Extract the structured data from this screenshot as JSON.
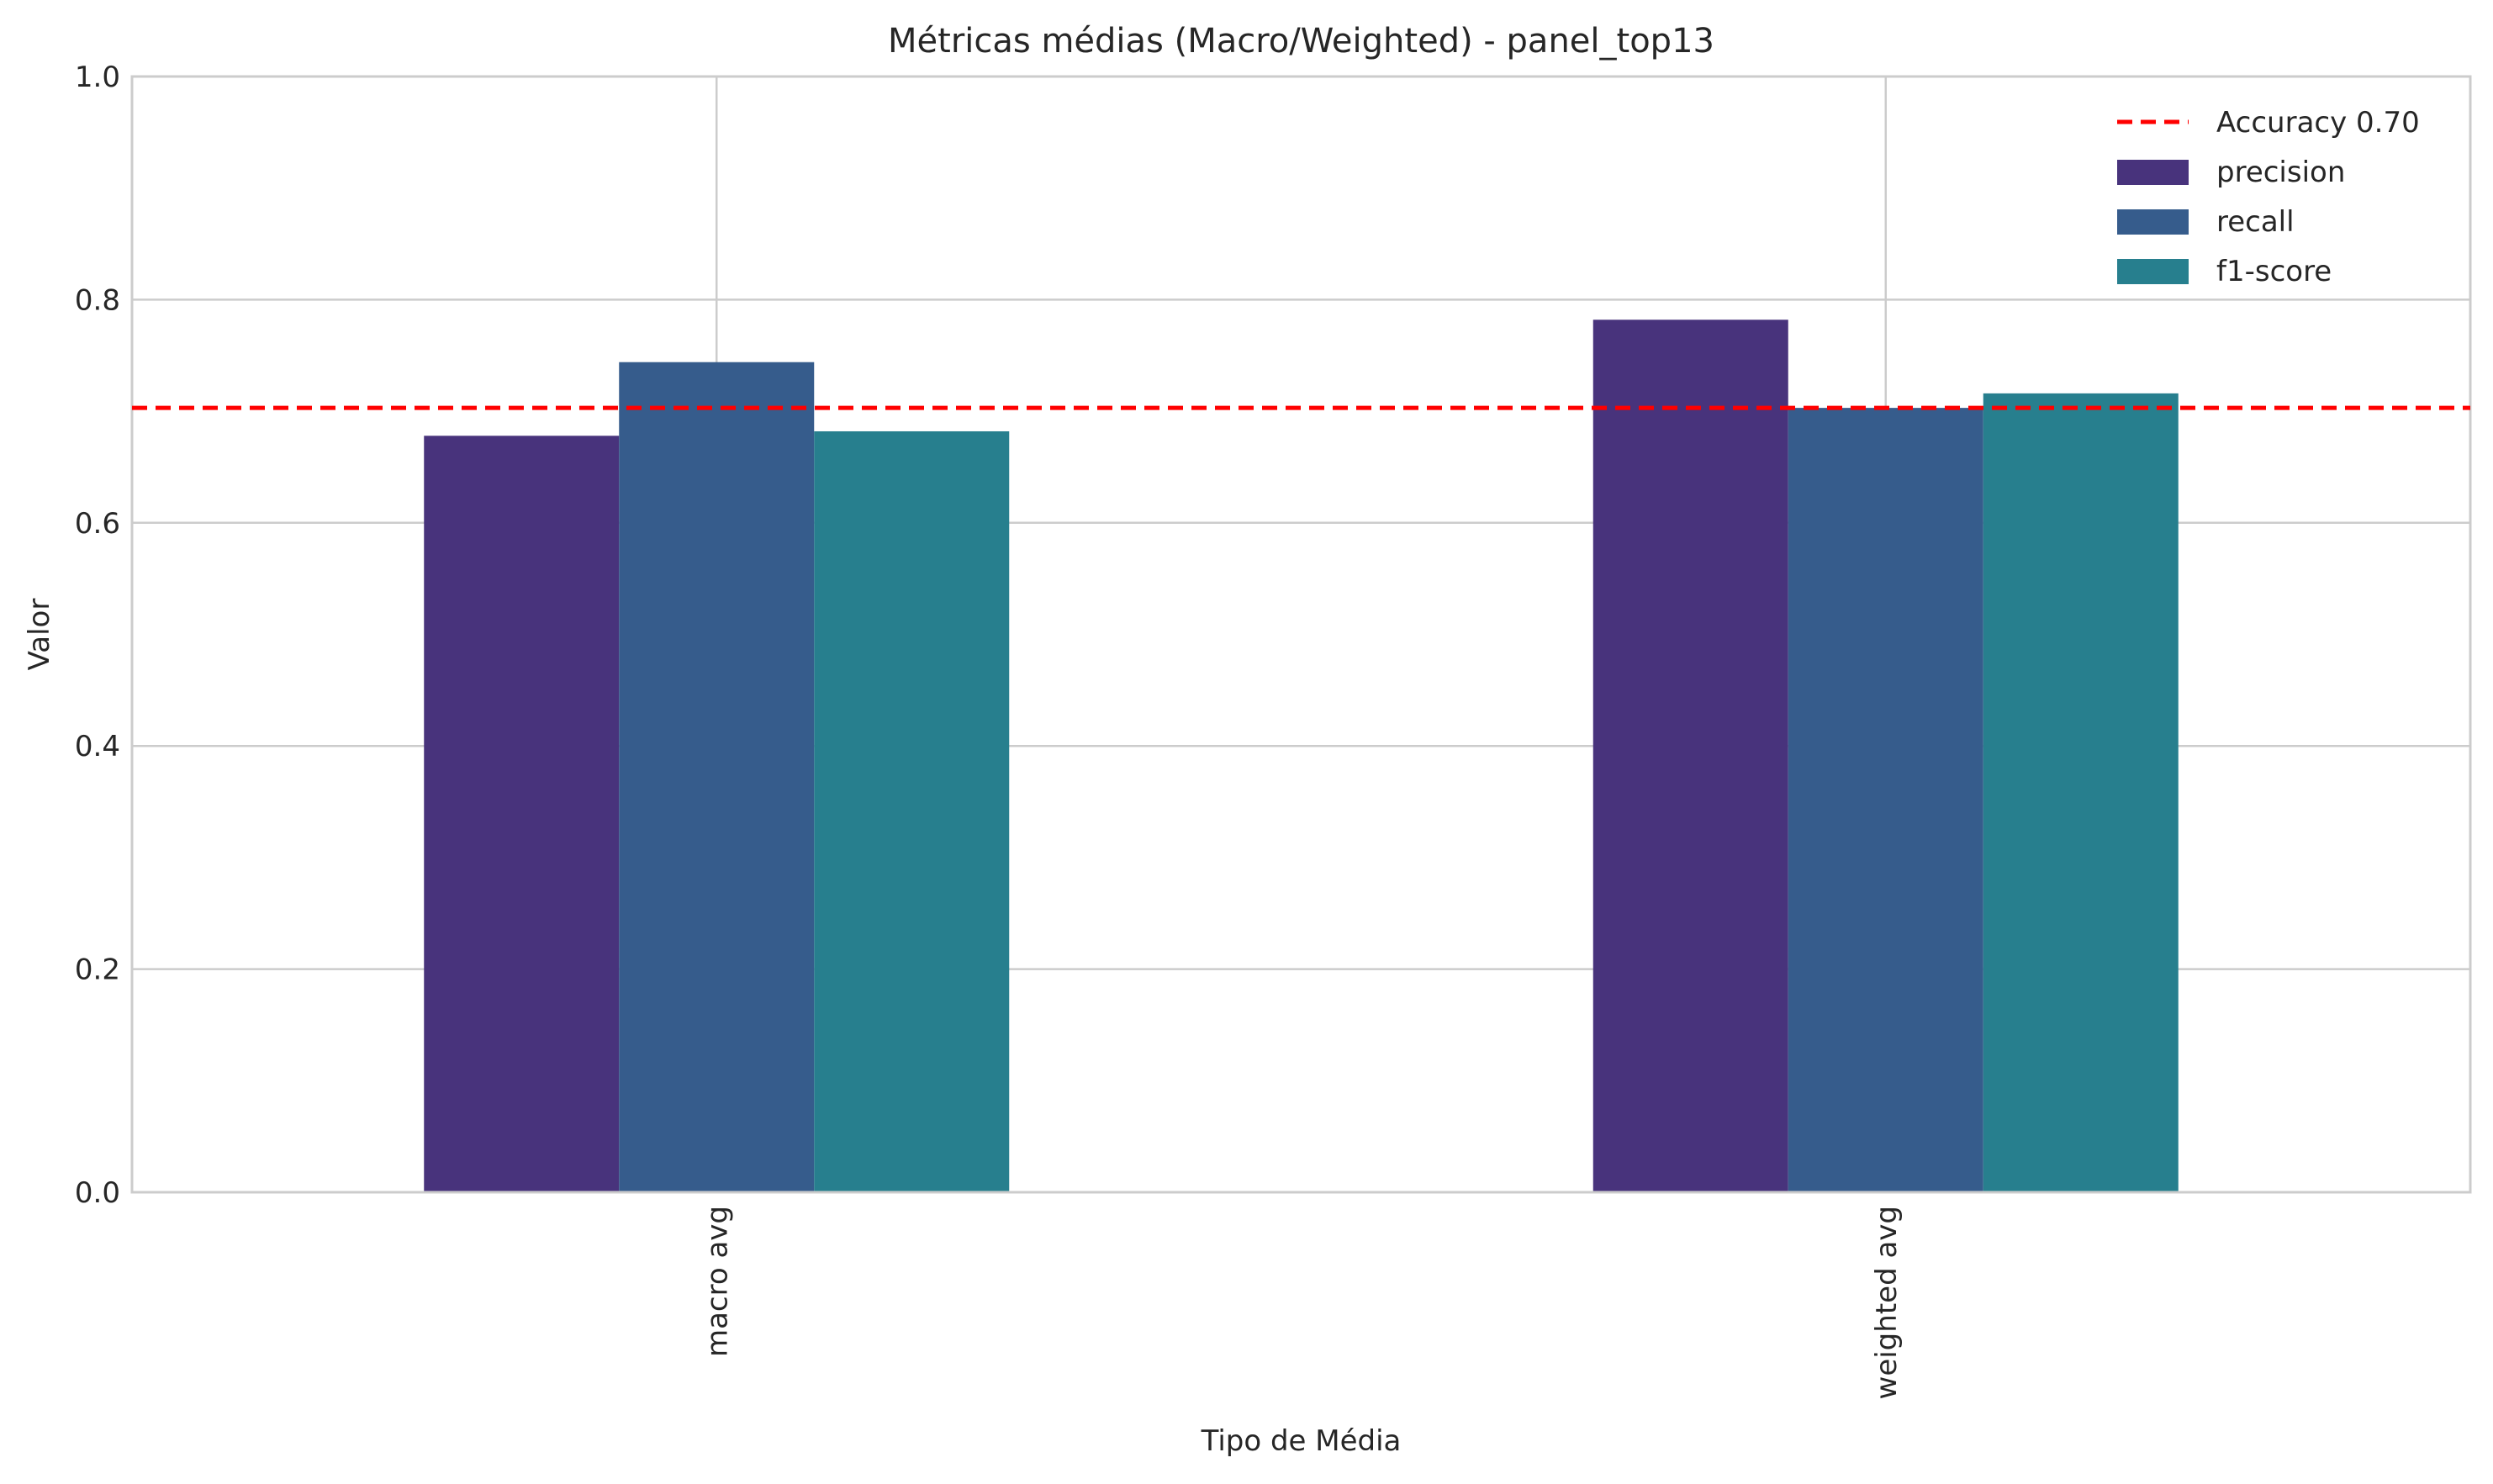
{
  "chart_data": {
    "type": "bar",
    "title": "Métricas médias (Macro/Weighted) - panel_top13",
    "xlabel": "Tipo de Média",
    "ylabel": "Valor",
    "categories": [
      "macro avg",
      "weighted avg"
    ],
    "series": [
      {
        "name": "precision",
        "values": [
          0.678,
          0.782
        ],
        "color": "#48337c"
      },
      {
        "name": "recall",
        "values": [
          0.744,
          0.703
        ],
        "color": "#365c8c"
      },
      {
        "name": "f1-score",
        "values": [
          0.682,
          0.716
        ],
        "color": "#277f8e"
      }
    ],
    "reference_line": {
      "label": "Accuracy 0.70",
      "value": 0.703,
      "color": "#ff0000",
      "style": "dashed"
    },
    "ylim": [
      0,
      1.0
    ],
    "yticks": [
      "0.0",
      "0.2",
      "0.4",
      "0.6",
      "0.8",
      "1.0"
    ],
    "grid": true,
    "legend_position": "top-right"
  }
}
